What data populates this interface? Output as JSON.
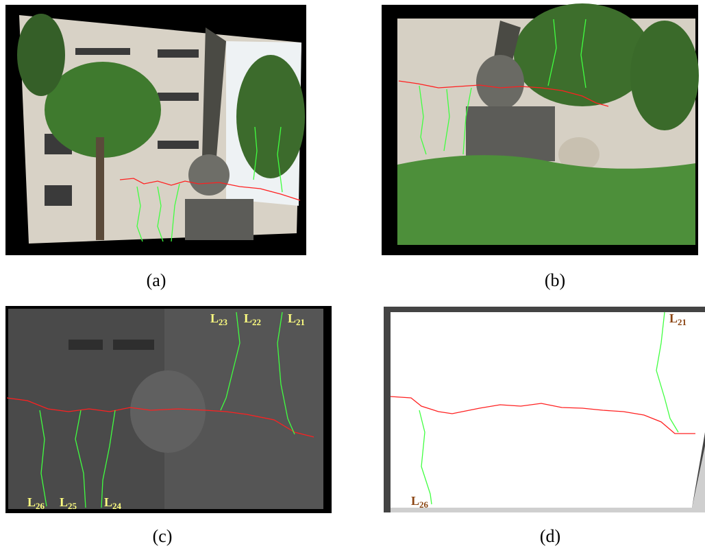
{
  "panels": [
    {
      "caption": "(a)"
    },
    {
      "caption": "(b)"
    },
    {
      "caption": "(c)",
      "labels": [
        {
          "base": "L",
          "sub": "23"
        },
        {
          "base": "L",
          "sub": "22"
        },
        {
          "base": "L",
          "sub": "21"
        },
        {
          "base": "L",
          "sub": "26"
        },
        {
          "base": "L",
          "sub": "25"
        },
        {
          "base": "L",
          "sub": "24"
        }
      ]
    },
    {
      "caption": "(d)",
      "labels": [
        {
          "base": "L",
          "sub": "21"
        },
        {
          "base": "L",
          "sub": "26"
        }
      ]
    }
  ]
}
